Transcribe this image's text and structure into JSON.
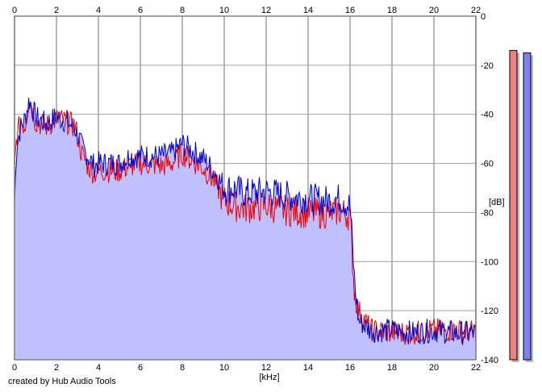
{
  "chart_data": {
    "type": "line",
    "title": "",
    "xlabel": "[kHz]",
    "ylabel": "[dB]",
    "xlim": [
      0,
      22
    ],
    "ylim": [
      -140,
      0
    ],
    "x_ticks": [
      "0",
      "2",
      "4",
      "6",
      "8",
      "10",
      "12",
      "14",
      "16",
      "18",
      "20",
      "22"
    ],
    "y_ticks": [
      "0",
      "-20",
      "-40",
      "-60",
      "-80",
      "-100",
      "-120",
      "-140"
    ],
    "grid": true,
    "fill_color": "#c0c0ff",
    "series": [
      {
        "color": "#0000cc",
        "points": [
          [
            0,
            -75
          ],
          [
            0.1,
            -52
          ],
          [
            0.3,
            -44
          ],
          [
            0.5,
            -41
          ],
          [
            0.7,
            -33
          ],
          [
            1.0,
            -40
          ],
          [
            1.5,
            -43
          ],
          [
            2.0,
            -40
          ],
          [
            2.5,
            -42
          ],
          [
            2.9,
            -45
          ],
          [
            3.2,
            -52
          ],
          [
            3.5,
            -56
          ],
          [
            3.8,
            -60
          ],
          [
            4.0,
            -59
          ],
          [
            5.0,
            -59
          ],
          [
            5.5,
            -56
          ],
          [
            6.0,
            -56
          ],
          [
            7.0,
            -56
          ],
          [
            7.5,
            -55
          ],
          [
            8.0,
            -51
          ],
          [
            8.5,
            -54
          ],
          [
            9.0,
            -57
          ],
          [
            9.5,
            -62
          ],
          [
            10.0,
            -69
          ],
          [
            10.5,
            -69
          ],
          [
            11.0,
            -71
          ],
          [
            12.0,
            -70
          ],
          [
            13.0,
            -72
          ],
          [
            14.0,
            -73
          ],
          [
            15.0,
            -74
          ],
          [
            15.5,
            -73
          ],
          [
            16.0,
            -76
          ],
          [
            16.1,
            -90
          ],
          [
            16.2,
            -105
          ],
          [
            16.4,
            -123
          ],
          [
            17.0,
            -127
          ],
          [
            18.0,
            -127
          ],
          [
            19.0,
            -128
          ],
          [
            20.0,
            -127
          ],
          [
            21.0,
            -128
          ],
          [
            22.0,
            -128
          ]
        ]
      },
      {
        "color": "#ee0000",
        "points": [
          [
            0,
            -62
          ],
          [
            0.1,
            -48
          ],
          [
            0.3,
            -42
          ],
          [
            0.5,
            -44
          ],
          [
            0.7,
            -32
          ],
          [
            1.0,
            -42
          ],
          [
            1.5,
            -44
          ],
          [
            2.0,
            -41
          ],
          [
            2.5,
            -42
          ],
          [
            2.9,
            -44
          ],
          [
            3.2,
            -55
          ],
          [
            3.5,
            -60
          ],
          [
            3.8,
            -63
          ],
          [
            4.0,
            -62
          ],
          [
            5.0,
            -62
          ],
          [
            5.5,
            -60
          ],
          [
            6.0,
            -59
          ],
          [
            7.0,
            -60
          ],
          [
            7.5,
            -59
          ],
          [
            8.0,
            -55
          ],
          [
            8.5,
            -58
          ],
          [
            9.0,
            -61
          ],
          [
            9.5,
            -66
          ],
          [
            10.0,
            -74
          ],
          [
            10.5,
            -76
          ],
          [
            11.0,
            -77
          ],
          [
            12.0,
            -76
          ],
          [
            13.0,
            -78
          ],
          [
            14.0,
            -79
          ],
          [
            15.0,
            -79
          ],
          [
            15.5,
            -78
          ],
          [
            16.0,
            -80
          ],
          [
            16.1,
            -95
          ],
          [
            16.2,
            -110
          ],
          [
            16.4,
            -119
          ],
          [
            17.0,
            -127
          ],
          [
            18.0,
            -128
          ],
          [
            19.0,
            -128
          ],
          [
            20.0,
            -127
          ],
          [
            21.0,
            -127
          ],
          [
            22.0,
            -128
          ]
        ]
      }
    ],
    "level_meters": [
      {
        "color": "#f08080",
        "level_db": -14
      },
      {
        "color": "#8080f0",
        "level_db": -15
      }
    ]
  },
  "credit": "created by Hub Audio Tools"
}
